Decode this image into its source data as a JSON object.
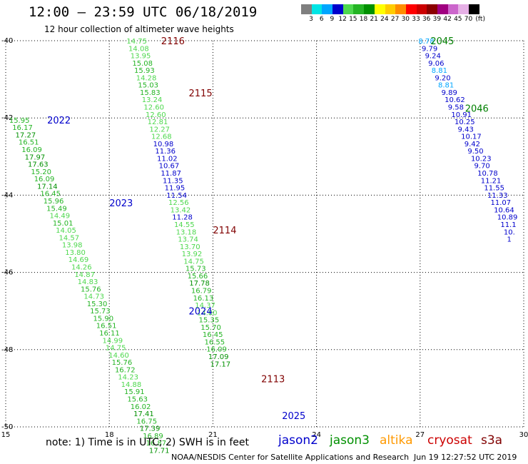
{
  "title": "12:00 – 23:59 UTC 06/18/2019",
  "subtitle": "12 hour collection of altimeter wave heights",
  "scale": {
    "unit": "(ft)",
    "labels": [
      "3",
      "6",
      "9",
      "12",
      "15",
      "18",
      "21",
      "24",
      "27",
      "30",
      "33",
      "36",
      "39",
      "42",
      "45",
      "70"
    ],
    "colors": [
      "#7f7f7f",
      "#00e5e5",
      "#00a6ff",
      "#0000cc",
      "#4ed84e",
      "#24b424",
      "#009000",
      "#ffff00",
      "#ffcc00",
      "#ff8c00",
      "#ff0000",
      "#cc0000",
      "#8b0000",
      "#a00080",
      "#cc66cc",
      "#e6b0e6",
      "#000000"
    ]
  },
  "axes": {
    "x_ticks": [
      "15",
      "18",
      "21",
      "24",
      "27",
      "30"
    ],
    "y_ticks": [
      "-40",
      "-42",
      "-44",
      "-46",
      "-48",
      "-50"
    ]
  },
  "chart_data": {
    "type": "scatter",
    "xlim": [
      15,
      30
    ],
    "ylim": [
      -50,
      -40
    ],
    "grid": true,
    "pass_labels": [
      {
        "text": "2116",
        "x": 19.5,
        "y": -40.0,
        "color": "#800000"
      },
      {
        "text": "2115",
        "x": 20.3,
        "y": -41.35,
        "color": "#800000"
      },
      {
        "text": "2114",
        "x": 21.0,
        "y": -44.9,
        "color": "#800000"
      },
      {
        "text": "2113",
        "x": 22.4,
        "y": -48.75,
        "color": "#800000"
      },
      {
        "text": "2022",
        "x": 16.2,
        "y": -42.05,
        "color": "#0000cc"
      },
      {
        "text": "2023",
        "x": 18.0,
        "y": -44.2,
        "color": "#0000cc"
      },
      {
        "text": "2024",
        "x": 20.3,
        "y": -47.0,
        "color": "#0000cc"
      },
      {
        "text": "2025",
        "x": 23.0,
        "y": -49.7,
        "color": "#0000cc"
      },
      {
        "text": "2045",
        "x": 27.3,
        "y": -40.0,
        "color": "#008000"
      },
      {
        "text": "2046",
        "x": 28.3,
        "y": -41.75,
        "color": "#008000"
      }
    ],
    "tracks": [
      {
        "x0": 18.5,
        "y0": -40.0,
        "dx": 0.055,
        "dy": -0.19,
        "values": [
          "14.75",
          "14.08",
          "13.95",
          "15.08",
          "15.93",
          "14.28",
          "15.03",
          "15.83",
          "13.24",
          "12.60",
          "12.60",
          "12.81",
          "12.27",
          "12.68",
          "10.98",
          "11.36",
          "11.02",
          "10.67",
          "11.87",
          "11.35",
          "11.95",
          "11.54",
          "12.56",
          "13.42",
          "11.28",
          "14.55",
          "13.18",
          "13.74",
          "13.70",
          "13.92",
          "14.75",
          "15.73",
          "15.66",
          "17.78",
          "16.79",
          "16.13",
          "14.37",
          "14.80",
          "15.35",
          "15.70",
          "16.45",
          "16.55",
          "16.09",
          "17.09",
          "17.17"
        ],
        "colors": [
          "#4ed84e",
          "#4ed84e",
          "#4ed84e",
          "#24b424",
          "#24b424",
          "#4ed84e",
          "#24b424",
          "#24b424",
          "#4ed84e",
          "#4ed84e",
          "#4ed84e",
          "#4ed84e",
          "#4ed84e",
          "#4ed84e",
          "#0000cc",
          "#0000cc",
          "#0000cc",
          "#0000cc",
          "#0000cc",
          "#0000cc",
          "#0000cc",
          "#0000cc",
          "#4ed84e",
          "#4ed84e",
          "#0000cc",
          "#4ed84e",
          "#4ed84e",
          "#4ed84e",
          "#4ed84e",
          "#4ed84e",
          "#4ed84e",
          "#24b424",
          "#24b424",
          "#009000",
          "#24b424",
          "#24b424",
          "#4ed84e",
          "#4ed84e",
          "#24b424",
          "#24b424",
          "#24b424",
          "#24b424",
          "#24b424",
          "#009000",
          "#009000"
        ]
      },
      {
        "x0": 15.1,
        "y0": -42.05,
        "dx": 0.09,
        "dy": -0.19,
        "values": [
          "15.95",
          "16.17",
          "17.27",
          "16.51",
          "16.09",
          "17.97",
          "17.63",
          "15.20",
          "16.09",
          "17.14",
          "16.45",
          "15.96",
          "15.49",
          "14.49",
          "15.01",
          "14.05",
          "14.57",
          "13.98",
          "13.80",
          "14.69",
          "14.26",
          "14.87",
          "14.83",
          "15.76",
          "14.73",
          "15.30",
          "15.73",
          "15.90",
          "16.51",
          "16.11",
          "14.99",
          "14.75",
          "14.60",
          "15.76",
          "16.72",
          "14.23",
          "14.88",
          "15.91",
          "15.63",
          "16.02",
          "17.41",
          "16.75",
          "17.39",
          "16.89",
          "16.87",
          "17.71"
        ],
        "colors": [
          "#24b424",
          "#24b424",
          "#009000",
          "#24b424",
          "#24b424",
          "#009000",
          "#009000",
          "#24b424",
          "#24b424",
          "#009000",
          "#24b424",
          "#24b424",
          "#24b424",
          "#4ed84e",
          "#24b424",
          "#4ed84e",
          "#4ed84e",
          "#4ed84e",
          "#4ed84e",
          "#4ed84e",
          "#4ed84e",
          "#4ed84e",
          "#4ed84e",
          "#24b424",
          "#4ed84e",
          "#24b424",
          "#24b424",
          "#24b424",
          "#24b424",
          "#24b424",
          "#4ed84e",
          "#4ed84e",
          "#4ed84e",
          "#24b424",
          "#24b424",
          "#4ed84e",
          "#4ed84e",
          "#24b424",
          "#24b424",
          "#24b424",
          "#009000",
          "#24b424",
          "#009000",
          "#24b424",
          "#24b424",
          "#009000"
        ]
      },
      {
        "x0": 26.95,
        "y0": -40.0,
        "dx": 0.095,
        "dy": -0.19,
        "values": [
          "8.78",
          "9.79",
          "9.24",
          "9.06",
          "8.81",
          "9.20",
          "8.81",
          "9.89",
          "10.62",
          "9.58",
          "10.91",
          "10.25",
          "9.43",
          "10.17",
          "9.42",
          "9.50",
          "10.23",
          "9.70",
          "10.78",
          "11.21",
          "11.55",
          "11.33",
          "11.07",
          "10.64",
          "10.89",
          "11.1",
          "10.",
          "1"
        ],
        "colors": [
          "#00a6ff",
          "#0000cc",
          "#0000cc",
          "#0000cc",
          "#00a6ff",
          "#0000cc",
          "#00a6ff",
          "#0000cc",
          "#0000cc",
          "#0000cc",
          "#0000cc",
          "#0000cc",
          "#0000cc",
          "#0000cc",
          "#0000cc",
          "#0000cc",
          "#0000cc",
          "#0000cc",
          "#0000cc",
          "#0000cc",
          "#0000cc",
          "#0000cc",
          "#0000cc",
          "#0000cc",
          "#0000cc",
          "#0000cc",
          "#0000cc",
          "#0000cc"
        ]
      }
    ]
  },
  "note": "note: 1) Time is in UTC; 2) SWH is in feet",
  "satellites": [
    {
      "name": "jason2",
      "color": "#0000cc"
    },
    {
      "name": "jason3",
      "color": "#009000"
    },
    {
      "name": "altika",
      "color": "#ff9900"
    },
    {
      "name": "cryosat",
      "color": "#cc0000"
    },
    {
      "name": "s3a",
      "color": "#800000"
    }
  ],
  "footer": "NOAA/NESDIS Center for Satellite Applications and Research",
  "timestamp": "Jun 19 12:27:52 UTC 2019"
}
